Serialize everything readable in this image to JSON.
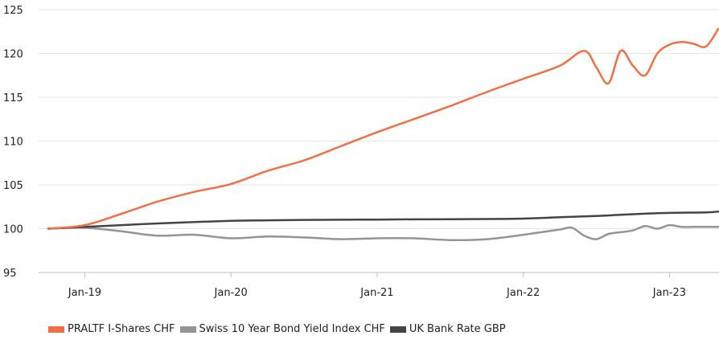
{
  "chart_data": {
    "type": "line",
    "title": "",
    "xlabel": "",
    "ylabel": "",
    "x_ticks": [
      "Jan-19",
      "Jan-20",
      "Jan-21",
      "Jan-22",
      "Jan-23"
    ],
    "y_ticks": [
      "95",
      "100",
      "105",
      "110",
      "115",
      "120",
      "125"
    ],
    "ylim": [
      95,
      125
    ],
    "xlim": [
      "2018-10",
      "2023-05"
    ],
    "grid": "horizontal",
    "legend_position": "bottom-left",
    "series": [
      {
        "name": "PRALTF I-Shares CHF",
        "color": "#f26f45",
        "x": [
          "2018-10",
          "2019-01",
          "2019-04",
          "2019-07",
          "2019-10",
          "2020-01",
          "2020-04",
          "2020-07",
          "2020-10",
          "2021-01",
          "2021-04",
          "2021-07",
          "2021-10",
          "2022-01",
          "2022-04",
          "2022-06",
          "2022-07",
          "2022-08",
          "2022-09",
          "2022-10",
          "2022-11",
          "2022-12",
          "2023-01",
          "2023-02",
          "2023-03",
          "2023-04",
          "2023-05"
        ],
        "values": [
          100,
          100.4,
          101.7,
          103.1,
          104.2,
          105.1,
          106.6,
          107.8,
          109.4,
          111.0,
          112.5,
          114.0,
          115.6,
          117.1,
          118.6,
          120.3,
          118.4,
          116.6,
          120.3,
          118.6,
          117.5,
          120.0,
          121.0,
          121.3,
          121.1,
          120.8,
          122.8
        ]
      },
      {
        "name": "Swiss 10 Year Bond Yield Index CHF",
        "color": "#949494",
        "x": [
          "2018-10",
          "2019-01",
          "2019-04",
          "2019-07",
          "2019-10",
          "2020-01",
          "2020-04",
          "2020-07",
          "2020-10",
          "2021-01",
          "2021-04",
          "2021-07",
          "2021-10",
          "2022-01",
          "2022-04",
          "2022-05",
          "2022-06",
          "2022-07",
          "2022-08",
          "2022-09",
          "2022-10",
          "2022-11",
          "2022-12",
          "2023-01",
          "2023-02",
          "2023-03",
          "2023-04",
          "2023-05"
        ],
        "values": [
          100,
          100.1,
          99.7,
          99.2,
          99.3,
          98.9,
          99.1,
          99.0,
          98.8,
          98.9,
          98.9,
          98.7,
          98.8,
          99.3,
          99.9,
          100.1,
          99.2,
          98.8,
          99.4,
          99.6,
          99.8,
          100.3,
          100.0,
          100.4,
          100.2,
          100.2,
          100.2,
          100.2
        ]
      },
      {
        "name": "UK Bank Rate GBP",
        "color": "#444444",
        "x": [
          "2018-10",
          "2019-01",
          "2019-04",
          "2019-07",
          "2019-10",
          "2020-01",
          "2020-04",
          "2020-07",
          "2020-10",
          "2021-01",
          "2021-04",
          "2021-07",
          "2021-10",
          "2022-01",
          "2022-04",
          "2022-07",
          "2022-10",
          "2023-01",
          "2023-04",
          "2023-05"
        ],
        "values": [
          100,
          100.2,
          100.4,
          100.6,
          100.75,
          100.9,
          100.95,
          101.0,
          101.02,
          101.04,
          101.06,
          101.08,
          101.1,
          101.15,
          101.3,
          101.45,
          101.65,
          101.8,
          101.85,
          101.95
        ]
      }
    ]
  }
}
